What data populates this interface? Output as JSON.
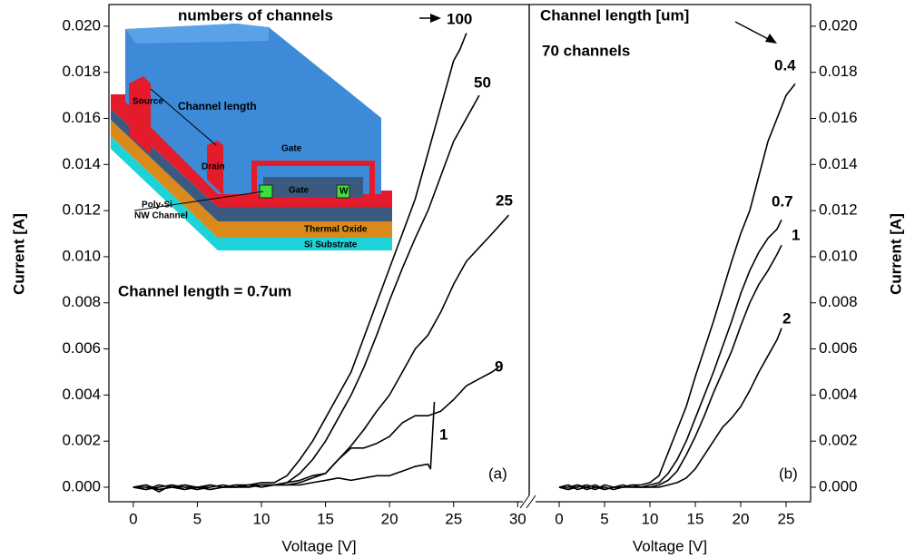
{
  "chart_data": [
    {
      "type": "line",
      "xlabel": "Voltage [V]",
      "ylabel": "Current [A]",
      "xlim": [
        -1.9,
        30.9
      ],
      "ylim": [
        -0.00063,
        0.02094
      ],
      "xticks": [
        0,
        5,
        10,
        15,
        20,
        25,
        30
      ],
      "yticks": [
        {
          "value": 0,
          "label": "0.000"
        },
        {
          "value": 0.002,
          "label": "0.002"
        },
        {
          "value": 0.004,
          "label": "0.004"
        },
        {
          "value": 0.006,
          "label": "0.006"
        },
        {
          "value": 0.008,
          "label": "0.008"
        },
        {
          "value": 0.01,
          "label": "0.010"
        },
        {
          "value": 0.012,
          "label": "0.012"
        },
        {
          "value": 0.014,
          "label": "0.014"
        },
        {
          "value": 0.016,
          "label": "0.016"
        },
        {
          "value": 0.018,
          "label": "0.018"
        },
        {
          "value": 0.02,
          "label": "0.020"
        }
      ],
      "annotations": {
        "legend_title": "numbers of channels",
        "condition": "Channel length = 0.7um",
        "panel": "(a)"
      },
      "inset": {
        "source": "Source",
        "channel_length": "Channel length",
        "drain": "Drain",
        "gate_top": "Gate",
        "gate_inner": "Gate",
        "width": "W",
        "channel": [
          "Poly-Si",
          "NW Channel"
        ],
        "oxide": "Thermal Oxide",
        "substrate": "Si Substrate"
      },
      "series": [
        {
          "name": "100",
          "color": "#000000",
          "x": [
            0,
            1,
            2,
            3,
            4,
            5,
            6,
            7,
            8,
            9,
            10,
            11,
            12,
            13,
            14,
            15,
            16,
            17,
            18,
            19,
            20,
            21,
            22,
            23,
            24,
            25,
            25.5,
            26
          ],
          "values": [
            0,
            0.0001,
            -0.0002,
            0.0001,
            0,
            -0.0001,
            0.0001,
            0,
            0.0001,
            0.0001,
            0.0002,
            0.0002,
            0.0005,
            0.0012,
            0.002,
            0.003,
            0.004,
            0.005,
            0.0065,
            0.008,
            0.0095,
            0.011,
            0.0125,
            0.0145,
            0.0165,
            0.0185,
            0.019,
            0.0197
          ]
        },
        {
          "name": "50",
          "color": "#000000",
          "x": [
            0,
            1,
            2,
            3,
            4,
            5,
            6,
            7,
            8,
            9,
            10,
            11,
            12,
            13,
            14,
            15,
            16,
            17,
            18,
            19,
            20,
            21,
            22,
            23,
            24,
            25,
            26,
            27
          ],
          "values": [
            0,
            -0.0001,
            0.0001,
            0,
            -0.0001,
            0,
            0.0001,
            0,
            0,
            0.0001,
            0.0001,
            0.0001,
            0.0002,
            0.0006,
            0.0012,
            0.002,
            0.003,
            0.004,
            0.0052,
            0.0066,
            0.0081,
            0.0095,
            0.0108,
            0.012,
            0.0135,
            0.015,
            0.016,
            0.017
          ]
        },
        {
          "name": "25",
          "color": "#000000",
          "x": [
            0,
            1,
            2,
            3,
            4,
            5,
            6,
            7,
            8,
            9,
            10,
            11,
            12,
            13,
            14,
            15,
            16,
            17,
            18,
            19,
            20,
            21,
            22,
            23,
            24,
            25,
            26,
            27,
            28,
            29.3
          ],
          "values": [
            0,
            0.0001,
            -0.0001,
            0,
            0.0001,
            -0.0001,
            0,
            0.0001,
            0,
            0,
            0.0001,
            0.0001,
            0.0002,
            0.0003,
            0.0005,
            0.0006,
            0.0012,
            0.0018,
            0.0025,
            0.0033,
            0.004,
            0.005,
            0.006,
            0.0066,
            0.0076,
            0.0088,
            0.0098,
            0.0104,
            0.011,
            0.0118
          ]
        },
        {
          "name": "9",
          "color": "#000000",
          "x": [
            0,
            1,
            2,
            3,
            4,
            5,
            6,
            7,
            8,
            9,
            10,
            11,
            12,
            13,
            14,
            15,
            16,
            17,
            18,
            19,
            20,
            21,
            22,
            23,
            24,
            25,
            26,
            27,
            28,
            28.5
          ],
          "values": [
            0,
            -0.0001,
            0,
            0.0001,
            -0.0001,
            0,
            -0.0001,
            0,
            0.0001,
            0,
            0.0001,
            0.0001,
            0.0001,
            0.0002,
            0.0004,
            0.0006,
            0.0012,
            0.0017,
            0.0017,
            0.0019,
            0.0022,
            0.0028,
            0.0031,
            0.0031,
            0.0033,
            0.0038,
            0.0044,
            0.0047,
            0.005,
            0.0052
          ]
        },
        {
          "name": "1",
          "color": "#000000",
          "x": [
            0,
            1,
            2,
            3,
            4,
            5,
            6,
            7,
            8,
            9,
            10,
            11,
            12,
            13,
            14,
            15,
            16,
            17,
            18,
            19,
            20,
            21,
            22,
            23,
            23.2,
            23.5
          ],
          "values": [
            0,
            0,
            -0.0001,
            0,
            0.0001,
            0,
            -0.0001,
            0,
            0,
            0.0001,
            0,
            0.0001,
            0.0001,
            0.0001,
            0.0002,
            0.0003,
            0.0004,
            0.0003,
            0.0004,
            0.0005,
            0.0005,
            0.0007,
            0.0009,
            0.001,
            0.0008,
            0.0037
          ]
        }
      ]
    },
    {
      "type": "line",
      "xlabel": "Voltage [V]",
      "ylabel": "Current [A]",
      "xlim": [
        -3.3,
        27.7
      ],
      "ylim": [
        -0.00063,
        0.02094
      ],
      "xticks": [
        0,
        5,
        10,
        15,
        20,
        25
      ],
      "yticks": [
        {
          "value": 0,
          "label": "0.000"
        },
        {
          "value": 0.002,
          "label": "0.002"
        },
        {
          "value": 0.004,
          "label": "0.004"
        },
        {
          "value": 0.006,
          "label": "0.006"
        },
        {
          "value": 0.008,
          "label": "0.008"
        },
        {
          "value": 0.01,
          "label": "0.010"
        },
        {
          "value": 0.012,
          "label": "0.012"
        },
        {
          "value": 0.014,
          "label": "0.014"
        },
        {
          "value": 0.016,
          "label": "0.016"
        },
        {
          "value": 0.018,
          "label": "0.018"
        },
        {
          "value": 0.02,
          "label": "0.020"
        }
      ],
      "annotations": {
        "legend_title": "Channel length [um]",
        "condition": "70 channels",
        "panel": "(b)"
      },
      "series": [
        {
          "name": "0.4",
          "color": "#000000",
          "x": [
            0,
            1,
            2,
            3,
            4,
            5,
            6,
            7,
            8,
            9,
            10,
            11,
            12,
            13,
            14,
            15,
            16,
            17,
            18,
            19,
            20,
            21,
            22,
            23,
            24,
            25,
            26
          ],
          "values": [
            0,
            -0.0001,
            0.0001,
            0,
            -0.0001,
            0.0001,
            0,
            0,
            0.0001,
            0.0001,
            0.0002,
            0.0005,
            0.0015,
            0.0025,
            0.0035,
            0.0048,
            0.006,
            0.0072,
            0.0085,
            0.0098,
            0.011,
            0.012,
            0.0135,
            0.015,
            0.016,
            0.017,
            0.0175
          ]
        },
        {
          "name": "0.7",
          "color": "#000000",
          "x": [
            0,
            1,
            2,
            3,
            4,
            5,
            6,
            7,
            8,
            9,
            10,
            11,
            12,
            13,
            14,
            15,
            16,
            17,
            18,
            19,
            20,
            21,
            22,
            23,
            24,
            24.5
          ],
          "values": [
            0,
            0.0001,
            -0.0001,
            0,
            0.0001,
            -0.0001,
            0,
            0.0001,
            0,
            0,
            0.0001,
            0.0002,
            0.0006,
            0.0012,
            0.002,
            0.003,
            0.004,
            0.005,
            0.0061,
            0.0072,
            0.0084,
            0.0094,
            0.0102,
            0.0108,
            0.0112,
            0.0116
          ]
        },
        {
          "name": "1",
          "color": "#000000",
          "x": [
            0,
            1,
            2,
            3,
            4,
            5,
            6,
            7,
            8,
            9,
            10,
            11,
            12,
            13,
            14,
            15,
            16,
            17,
            18,
            19,
            20,
            21,
            22,
            23,
            24,
            24.5
          ],
          "values": [
            0,
            -0.0001,
            0,
            0.0001,
            0,
            -0.0001,
            0,
            0,
            0.0001,
            0,
            0,
            0.0001,
            0.0003,
            0.0007,
            0.0014,
            0.0022,
            0.0031,
            0.0041,
            0.005,
            0.0059,
            0.007,
            0.008,
            0.0088,
            0.0094,
            0.0101,
            0.0105
          ]
        },
        {
          "name": "2",
          "color": "#000000",
          "x": [
            0,
            1,
            2,
            3,
            4,
            5,
            6,
            7,
            8,
            9,
            10,
            11,
            12,
            13,
            14,
            15,
            16,
            17,
            18,
            19,
            20,
            21,
            22,
            23,
            24,
            24.5
          ],
          "values": [
            0,
            0,
            0.0001,
            -0.0001,
            0,
            0,
            -0.0001,
            0,
            0,
            0,
            0,
            0,
            0.0001,
            0.0002,
            0.0004,
            0.0008,
            0.0014,
            0.002,
            0.0026,
            0.003,
            0.0035,
            0.0042,
            0.005,
            0.0057,
            0.0064,
            0.0069
          ]
        }
      ]
    }
  ]
}
